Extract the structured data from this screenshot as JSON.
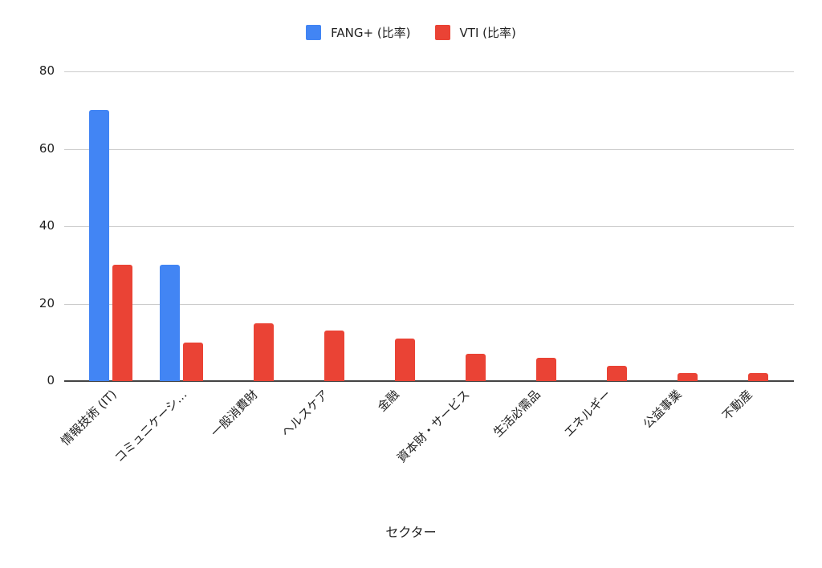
{
  "chart_data": {
    "type": "bar",
    "title": "",
    "xlabel": "セクター",
    "ylabel": "",
    "ylim": [
      0,
      80
    ],
    "yticks": [
      0,
      20,
      40,
      60,
      80
    ],
    "grid": true,
    "legend_position": "top",
    "categories": [
      "情報技術 (IT)",
      "コミュニケーシ…",
      "一般消費財",
      "ヘルスケア",
      "金融",
      "資本財・サービス",
      "生活必需品",
      "エネルギー",
      "公益事業",
      "不動産"
    ],
    "series": [
      {
        "name": "FANG+ (比率)",
        "color": "#4285f4",
        "values": [
          70,
          30,
          0,
          0,
          0,
          0,
          0,
          0,
          0,
          0
        ]
      },
      {
        "name": "VTI (比率)",
        "color": "#ea4335",
        "values": [
          30,
          10,
          15,
          13,
          11,
          7,
          6,
          4,
          2,
          2
        ]
      }
    ]
  },
  "legend": {
    "fang_label": "FANG+ (比率)",
    "vti_label": "VTI (比率)"
  },
  "axis": {
    "x_title": "セクター",
    "y_ticks": [
      "0",
      "20",
      "40",
      "60",
      "80"
    ]
  }
}
